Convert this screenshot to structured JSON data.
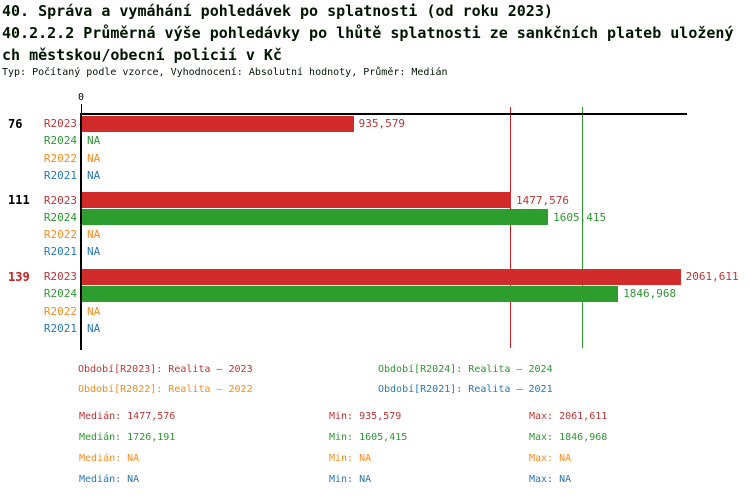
{
  "header": {
    "title_line1": "40. Správa a vymáhání pohledávek po splatnosti (od roku 2023)",
    "title_line2": "40.2.2.2 Průměrná výše pohledávky po lhůtě splatnosti ze sankčních plateb uložený",
    "title_line3": "ch městskou/obecní policií v Kč",
    "subtitle": "Typ: Počítaný podle vzorce, Vyhodnocení: Absolutní hodnoty, Průměr: Medián"
  },
  "chart_data": {
    "type": "bar",
    "orientation": "horizontal",
    "title": "40.2.2.2 Průměrná výše pohledávky po lhůtě splatnosti ze sankčních plateb uložených městskou/obecní policií v Kč",
    "axis": {
      "origin_label": "0",
      "grid": false
    },
    "series_styles": {
      "R2023": {
        "bar": "#d22b2b",
        "text": "#c03434",
        "line": "#cc2222"
      },
      "R2024": {
        "bar": "#2d9e2d",
        "text": "#2f9732",
        "line": "#2d9e2d"
      },
      "R2022": {
        "bar": "#f68b1f",
        "text": "#f68b1f",
        "line": "#f68b1f"
      },
      "R2021": {
        "bar": "#2878b4",
        "text": "#2878b4",
        "line": "#2878b4"
      }
    },
    "na_text": "NA",
    "groups": [
      {
        "label": "76",
        "label_color": "#000000",
        "rows": [
          {
            "series": "R2023",
            "value": 935.579,
            "display": "935,579"
          },
          {
            "series": "R2024",
            "value": null,
            "display": "NA"
          },
          {
            "series": "R2022",
            "value": null,
            "display": "NA"
          },
          {
            "series": "R2021",
            "value": null,
            "display": "NA"
          }
        ]
      },
      {
        "label": "111",
        "label_color": "#000000",
        "rows": [
          {
            "series": "R2023",
            "value": 1477.576,
            "display": "1477,576"
          },
          {
            "series": "R2024",
            "value": 1605.415,
            "display": "1605,415"
          },
          {
            "series": "R2022",
            "value": null,
            "display": "NA"
          },
          {
            "series": "R2021",
            "value": null,
            "display": "NA"
          }
        ]
      },
      {
        "label": "139",
        "label_color": "#cc2222",
        "rows": [
          {
            "series": "R2023",
            "value": 2061.611,
            "display": "2061,611"
          },
          {
            "series": "R2024",
            "value": 1846.968,
            "display": "1846,968"
          },
          {
            "series": "R2022",
            "value": null,
            "display": "NA"
          },
          {
            "series": "R2021",
            "value": null,
            "display": "NA"
          }
        ]
      }
    ],
    "median_lines": [
      {
        "series": "R2023",
        "value": 1477.576
      },
      {
        "series": "R2024",
        "value": 1726.191
      }
    ],
    "legend": [
      {
        "series": "R2023",
        "text": "Období[R2023]: Realita – 2023",
        "col": 0,
        "row": 0
      },
      {
        "series": "R2024",
        "text": "Období[R2024]: Realita – 2024",
        "col": 1,
        "row": 0
      },
      {
        "series": "R2022",
        "text": "Období[R2022]: Realita – 2022",
        "col": 0,
        "row": 1
      },
      {
        "series": "R2021",
        "text": "Období[R2021]: Realita – 2021",
        "col": 1,
        "row": 1
      }
    ],
    "stats_labels": {
      "median": "Medián",
      "min": "Min",
      "max": "Max"
    },
    "stats": [
      {
        "series": "R2023",
        "median": "1477,576",
        "min": "935,579",
        "max": "2061,611"
      },
      {
        "series": "R2024",
        "median": "1726,191",
        "min": "1605,415",
        "max": "1846,968"
      },
      {
        "series": "R2022",
        "median": "NA",
        "min": "NA",
        "max": "NA"
      },
      {
        "series": "R2021",
        "median": "NA",
        "min": "NA",
        "max": "NA"
      }
    ]
  }
}
